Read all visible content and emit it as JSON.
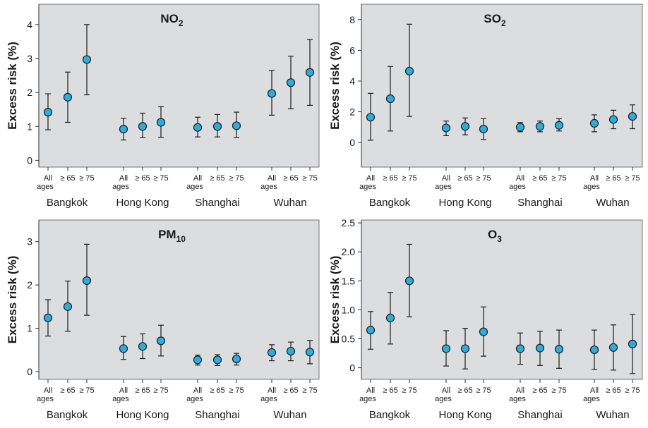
{
  "chart_data": [
    {
      "type": "scatter",
      "title": "NO",
      "title_sub": "2",
      "ylabel": "Excess risk (%)",
      "ylim": [
        -0.2,
        4.6
      ],
      "yticks": [
        0,
        1,
        2,
        3,
        4
      ],
      "tick_labels": [
        "0",
        "1",
        "2",
        "3",
        "4"
      ],
      "cities": [
        "Bangkok",
        "Hong Kong",
        "Shanghai",
        "Wuhan"
      ],
      "groups": [
        "All ages",
        "≥ 65",
        "≥ 75"
      ],
      "series": [
        {
          "city": "Bangkok",
          "points": [
            {
              "group": "All ages",
              "value": 1.42,
              "lo": 0.9,
              "hi": 1.96
            },
            {
              "group": "≥ 65",
              "value": 1.86,
              "lo": 1.12,
              "hi": 2.6
            },
            {
              "group": "≥ 75",
              "value": 2.97,
              "lo": 1.93,
              "hi": 4.0
            }
          ]
        },
        {
          "city": "Hong Kong",
          "points": [
            {
              "group": "All ages",
              "value": 0.92,
              "lo": 0.6,
              "hi": 1.24
            },
            {
              "group": "≥ 65",
              "value": 1.0,
              "lo": 0.67,
              "hi": 1.39
            },
            {
              "group": "≥ 75",
              "value": 1.12,
              "lo": 0.68,
              "hi": 1.58
            }
          ]
        },
        {
          "city": "Shanghai",
          "points": [
            {
              "group": "All ages",
              "value": 0.97,
              "lo": 0.69,
              "hi": 1.27
            },
            {
              "group": "≥ 65",
              "value": 1.0,
              "lo": 0.69,
              "hi": 1.35
            },
            {
              "group": "≥ 75",
              "value": 1.02,
              "lo": 0.67,
              "hi": 1.42
            }
          ]
        },
        {
          "city": "Wuhan",
          "points": [
            {
              "group": "All ages",
              "value": 1.97,
              "lo": 1.33,
              "hi": 2.65
            },
            {
              "group": "≥ 65",
              "value": 2.29,
              "lo": 1.52,
              "hi": 3.07
            },
            {
              "group": "≥ 75",
              "value": 2.59,
              "lo": 1.62,
              "hi": 3.56
            }
          ]
        }
      ]
    },
    {
      "type": "scatter",
      "title": "SO",
      "title_sub": "2",
      "ylabel": "Excess risk (%)",
      "ylim": [
        -1.6,
        9.0
      ],
      "yticks": [
        0,
        2,
        4,
        6,
        8
      ],
      "tick_labels": [
        "0",
        "2",
        "4",
        "6",
        "8"
      ],
      "cities": [
        "Bangkok",
        "Hong Kong",
        "Shanghai",
        "Wuhan"
      ],
      "groups": [
        "All ages",
        "≥ 65",
        "≥ 75"
      ],
      "series": [
        {
          "city": "Bangkok",
          "points": [
            {
              "group": "All ages",
              "value": 1.65,
              "lo": 0.15,
              "hi": 3.2
            },
            {
              "group": "≥ 65",
              "value": 2.85,
              "lo": 0.75,
              "hi": 4.95
            },
            {
              "group": "≥ 75",
              "value": 4.65,
              "lo": 1.7,
              "hi": 7.7
            }
          ]
        },
        {
          "city": "Hong Kong",
          "points": [
            {
              "group": "All ages",
              "value": 0.95,
              "lo": 0.45,
              "hi": 1.4
            },
            {
              "group": "≥ 65",
              "value": 1.05,
              "lo": 0.5,
              "hi": 1.6
            },
            {
              "group": "≥ 75",
              "value": 0.88,
              "lo": 0.2,
              "hi": 1.55
            }
          ]
        },
        {
          "city": "Shanghai",
          "points": [
            {
              "group": "All ages",
              "value": 1.0,
              "lo": 0.7,
              "hi": 1.3
            },
            {
              "group": "≥ 65",
              "value": 1.05,
              "lo": 0.7,
              "hi": 1.4
            },
            {
              "group": "≥ 75",
              "value": 1.12,
              "lo": 0.75,
              "hi": 1.55
            }
          ]
        },
        {
          "city": "Wuhan",
          "points": [
            {
              "group": "All ages",
              "value": 1.25,
              "lo": 0.7,
              "hi": 1.8
            },
            {
              "group": "≥ 65",
              "value": 1.5,
              "lo": 0.9,
              "hi": 2.1
            },
            {
              "group": "≥ 75",
              "value": 1.7,
              "lo": 0.9,
              "hi": 2.45
            }
          ]
        }
      ]
    },
    {
      "type": "scatter",
      "title": "PM",
      "title_sub": "10",
      "ylabel": "Excess risk (%)",
      "ylim": [
        -0.18,
        3.5
      ],
      "yticks": [
        0,
        1,
        2,
        3
      ],
      "tick_labels": [
        "0",
        "1",
        "2",
        "3"
      ],
      "cities": [
        "Bangkok",
        "Hong Kong",
        "Shanghai",
        "Wuhan"
      ],
      "groups": [
        "All ages",
        "≥ 65",
        "≥ 75"
      ],
      "series": [
        {
          "city": "Bangkok",
          "points": [
            {
              "group": "All ages",
              "value": 1.24,
              "lo": 0.82,
              "hi": 1.66
            },
            {
              "group": "≥ 65",
              "value": 1.5,
              "lo": 0.93,
              "hi": 2.09
            },
            {
              "group": "≥ 75",
              "value": 2.1,
              "lo": 1.3,
              "hi": 2.94
            }
          ]
        },
        {
          "city": "Hong Kong",
          "points": [
            {
              "group": "All ages",
              "value": 0.53,
              "lo": 0.28,
              "hi": 0.81
            },
            {
              "group": "≥ 65",
              "value": 0.58,
              "lo": 0.3,
              "hi": 0.87
            },
            {
              "group": "≥ 75",
              "value": 0.71,
              "lo": 0.36,
              "hi": 1.07
            }
          ]
        },
        {
          "city": "Shanghai",
          "points": [
            {
              "group": "All ages",
              "value": 0.27,
              "lo": 0.15,
              "hi": 0.38
            },
            {
              "group": "≥ 65",
              "value": 0.27,
              "lo": 0.14,
              "hi": 0.39
            },
            {
              "group": "≥ 75",
              "value": 0.29,
              "lo": 0.15,
              "hi": 0.42
            }
          ]
        },
        {
          "city": "Wuhan",
          "points": [
            {
              "group": "All ages",
              "value": 0.44,
              "lo": 0.25,
              "hi": 0.62
            },
            {
              "group": "≥ 65",
              "value": 0.47,
              "lo": 0.25,
              "hi": 0.68
            },
            {
              "group": "≥ 75",
              "value": 0.45,
              "lo": 0.18,
              "hi": 0.72
            }
          ]
        }
      ]
    },
    {
      "type": "scatter",
      "title": "O",
      "title_sub": "3",
      "ylabel": "Excess risk (%)",
      "ylim": [
        -0.2,
        2.55
      ],
      "yticks": [
        0,
        0.5,
        1.0,
        1.5,
        2.0,
        2.5
      ],
      "tick_labels": [
        "0",
        "0.5",
        "1.0",
        "1.5",
        "2.0",
        "2.5"
      ],
      "cities": [
        "Bangkok",
        "Hong Kong",
        "Shanghai",
        "Wuhan"
      ],
      "groups": [
        "All ages",
        "≥ 65",
        "≥ 75"
      ],
      "series": [
        {
          "city": "Bangkok",
          "points": [
            {
              "group": "All ages",
              "value": 0.65,
              "lo": 0.32,
              "hi": 0.97
            },
            {
              "group": "≥ 65",
              "value": 0.86,
              "lo": 0.41,
              "hi": 1.3
            },
            {
              "group": "≥ 75",
              "value": 1.5,
              "lo": 0.88,
              "hi": 2.13
            }
          ]
        },
        {
          "city": "Hong Kong",
          "points": [
            {
              "group": "All ages",
              "value": 0.33,
              "lo": 0.03,
              "hi": 0.64
            },
            {
              "group": "≥ 65",
              "value": 0.33,
              "lo": -0.02,
              "hi": 0.68
            },
            {
              "group": "≥ 75",
              "value": 0.62,
              "lo": 0.2,
              "hi": 1.05
            }
          ]
        },
        {
          "city": "Shanghai",
          "points": [
            {
              "group": "All ages",
              "value": 0.33,
              "lo": 0.06,
              "hi": 0.6
            },
            {
              "group": "≥ 65",
              "value": 0.34,
              "lo": 0.04,
              "hi": 0.63
            },
            {
              "group": "≥ 75",
              "value": 0.32,
              "lo": -0.01,
              "hi": 0.65
            }
          ]
        },
        {
          "city": "Wuhan",
          "points": [
            {
              "group": "All ages",
              "value": 0.31,
              "lo": -0.03,
              "hi": 0.65
            },
            {
              "group": "≥ 65",
              "value": 0.35,
              "lo": -0.04,
              "hi": 0.74
            },
            {
              "group": "≥ 75",
              "value": 0.41,
              "lo": -0.1,
              "hi": 0.92
            }
          ]
        }
      ]
    }
  ],
  "colors": {
    "plot_background": "#dcdddf",
    "marker_fill": "#2aaee0",
    "marker_stroke": "#1a1a1a",
    "error_bar": "#1a1a1a",
    "text": "#1a1a1a"
  }
}
